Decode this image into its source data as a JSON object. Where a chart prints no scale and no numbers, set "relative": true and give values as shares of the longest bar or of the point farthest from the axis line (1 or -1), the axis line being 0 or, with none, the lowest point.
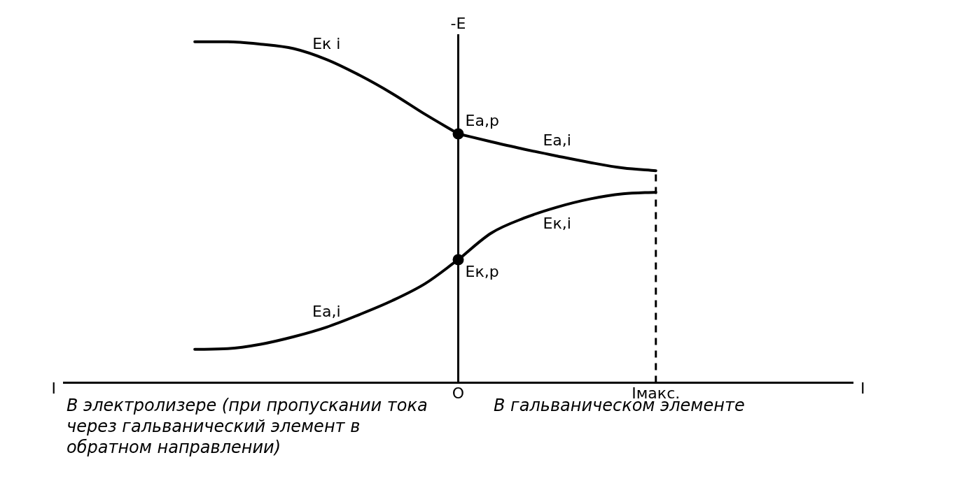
{
  "chart_data": {
    "type": "line",
    "relative": true,
    "ylabel": "-E",
    "xlabel": "I",
    "legend": false,
    "marker": "none",
    "line_style": "solid",
    "categories": [
      null,
      null,
      null,
      null,
      null,
      null,
      null,
      null,
      null,
      null,
      null,
      null,
      "O",
      null,
      null,
      null,
      null,
      null,
      "Iмакс.",
      null,
      null,
      null,
      null,
      null,
      null
    ],
    "series": [
      {
        "name": "Eк i",
        "color": "#000000",
        "values": [
          null,
          null,
          null,
          null,
          1,
          1,
          0.993,
          0.98,
          0.948,
          0.902,
          0.848,
          0.787,
          0.73,
          null,
          null,
          null,
          null,
          null,
          null,
          null,
          null,
          null,
          null,
          null,
          null
        ]
      },
      {
        "name": "Ea,i",
        "color": "#000000",
        "values": [
          null,
          null,
          null,
          null,
          null,
          null,
          null,
          null,
          null,
          null,
          null,
          null,
          0.73,
          0.707,
          0.685,
          0.665,
          0.646,
          0.63,
          0.622,
          null,
          null,
          null,
          null,
          null,
          null
        ]
      },
      {
        "name": "Ea,i",
        "color": "#000000",
        "values": [
          null,
          null,
          null,
          null,
          0.098,
          0.1,
          0.113,
          0.135,
          0.163,
          0.2,
          0.241,
          0.291,
          0.361,
          null,
          null,
          null,
          null,
          null,
          null,
          null,
          null,
          null,
          null,
          null,
          null
        ]
      },
      {
        "name": "Eк,i",
        "color": "#000000",
        "values": [
          null,
          null,
          null,
          null,
          null,
          null,
          null,
          null,
          null,
          null,
          null,
          null,
          0.361,
          0.439,
          0.483,
          0.515,
          0.539,
          0.554,
          0.559,
          null,
          null,
          null,
          null,
          null,
          null
        ]
      },
      {
        "type": "scatter",
        "marker": "circle",
        "color": "#000000",
        "x": [
          "O",
          "O"
        ],
        "values": [
          0.73,
          0.361
        ]
      }
    ],
    "ref_lines": [
      {
        "axis": "x",
        "value": "Iмакс.",
        "line_style": "dashed",
        "color": "#000000"
      }
    ],
    "annotations": [
      {
        "text": "Ea,р",
        "x": "O",
        "y": 0.73
      },
      {
        "text": "Eк,р",
        "x": "O",
        "y": 0.361
      },
      "В электролизере (при пропускании тока через гальванический элемент в обратном направлении)",
      "В гальваническом элементе"
    ]
  }
}
